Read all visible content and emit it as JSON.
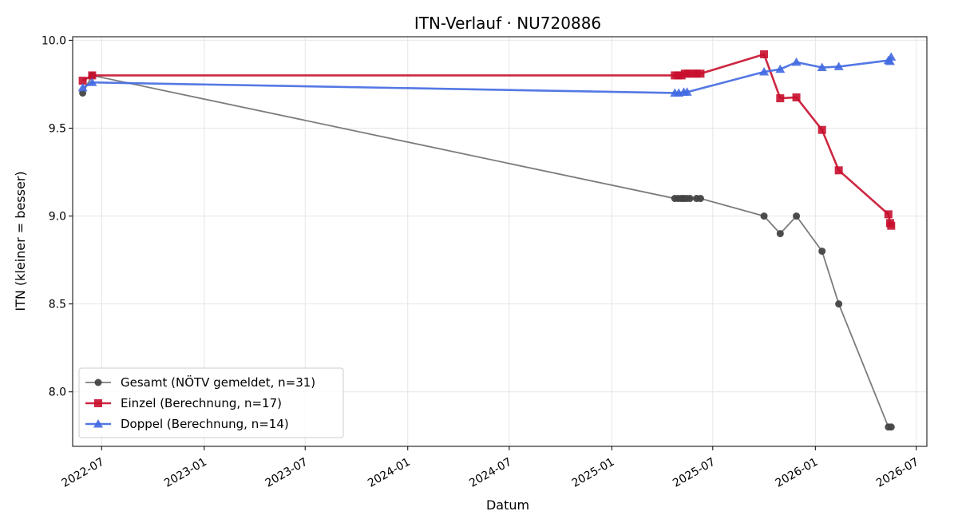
{
  "chart_data": {
    "type": "line",
    "title": "ITN-Verlauf · NU720886",
    "xlabel": "Datum",
    "ylabel": "ITN  (kleiner = besser)",
    "x_ticks": [
      "2022-07",
      "2023-01",
      "2023-07",
      "2024-01",
      "2024-07",
      "2025-01",
      "2025-07",
      "2026-01",
      "2026-07"
    ],
    "y_ticks": [
      "8.0",
      "8.5",
      "9.0",
      "9.5",
      "10.0"
    ],
    "xlim": [
      "2022-05-10",
      "2026-07-20"
    ],
    "ylim": [
      7.69,
      10.02
    ],
    "grid": true,
    "legend_position": "lower-left",
    "series": [
      {
        "name": "Gesamt (NÖTV gemeldet, n=31)",
        "color": "#444444",
        "marker": "circle",
        "points": [
          {
            "x": "2022-05-28",
            "y": 9.7
          },
          {
            "x": "2022-06-14",
            "y": 9.8
          },
          {
            "x": "2025-04-24",
            "y": 9.1
          },
          {
            "x": "2025-04-30",
            "y": 9.1
          },
          {
            "x": "2025-05-06",
            "y": 9.1
          },
          {
            "x": "2025-05-10",
            "y": 9.1
          },
          {
            "x": "2025-05-15",
            "y": 9.1
          },
          {
            "x": "2025-05-21",
            "y": 9.1
          },
          {
            "x": "2025-06-02",
            "y": 9.1
          },
          {
            "x": "2025-06-09",
            "y": 9.1
          },
          {
            "x": "2025-10-01",
            "y": 9.0
          },
          {
            "x": "2025-10-30",
            "y": 8.9
          },
          {
            "x": "2025-11-28",
            "y": 9.0
          },
          {
            "x": "2026-01-13",
            "y": 8.8
          },
          {
            "x": "2026-02-12",
            "y": 8.5
          },
          {
            "x": "2026-05-12",
            "y": 7.8
          },
          {
            "x": "2026-05-17",
            "y": 7.8
          }
        ]
      },
      {
        "name": "Einzel (Berechnung, n=17)",
        "color": "#c8102e",
        "marker": "square",
        "points": [
          {
            "x": "2022-05-28",
            "y": 9.77
          },
          {
            "x": "2022-06-14",
            "y": 9.8
          },
          {
            "x": "2025-04-24",
            "y": 9.8
          },
          {
            "x": "2025-04-30",
            "y": 9.8
          },
          {
            "x": "2025-05-06",
            "y": 9.8
          },
          {
            "x": "2025-05-12",
            "y": 9.81
          },
          {
            "x": "2025-05-18",
            "y": 9.81
          },
          {
            "x": "2025-05-26",
            "y": 9.81
          },
          {
            "x": "2025-06-02",
            "y": 9.81
          },
          {
            "x": "2025-06-09",
            "y": 9.81
          },
          {
            "x": "2025-10-01",
            "y": 9.92
          },
          {
            "x": "2025-10-30",
            "y": 9.67
          },
          {
            "x": "2025-11-28",
            "y": 9.675
          },
          {
            "x": "2026-01-13",
            "y": 9.49
          },
          {
            "x": "2026-02-12",
            "y": 9.26
          },
          {
            "x": "2026-05-12",
            "y": 9.01
          },
          {
            "x": "2026-05-15",
            "y": 8.96
          },
          {
            "x": "2026-05-17",
            "y": 8.945
          }
        ]
      },
      {
        "name": "Doppel (Berechnung, n=14)",
        "color": "#4169e1",
        "marker": "triangle",
        "points": [
          {
            "x": "2022-05-28",
            "y": 9.73
          },
          {
            "x": "2022-06-14",
            "y": 9.76
          },
          {
            "x": "2025-04-24",
            "y": 9.7
          },
          {
            "x": "2025-05-01",
            "y": 9.7
          },
          {
            "x": "2025-05-10",
            "y": 9.705
          },
          {
            "x": "2025-05-16",
            "y": 9.705
          },
          {
            "x": "2025-10-01",
            "y": 9.82
          },
          {
            "x": "2025-10-30",
            "y": 9.835
          },
          {
            "x": "2025-11-28",
            "y": 9.875
          },
          {
            "x": "2026-01-13",
            "y": 9.845
          },
          {
            "x": "2026-02-12",
            "y": 9.85
          },
          {
            "x": "2026-05-12",
            "y": 9.885
          },
          {
            "x": "2026-05-15",
            "y": 9.88
          },
          {
            "x": "2026-05-17",
            "y": 9.905
          }
        ]
      }
    ]
  }
}
